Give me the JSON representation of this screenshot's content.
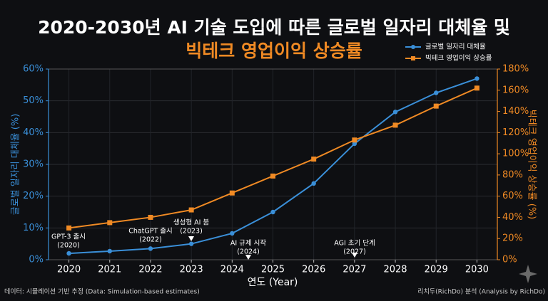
{
  "chart_data": {
    "type": "line",
    "title": [
      "2020-2030년 AI 기술 도입에 따른 글로벌 일자리 대체율 및",
      "빅테크 영업이익 상승률"
    ],
    "x_label": "연도 (Year)",
    "y_label": "글로벌 일자리 대체율 (%)",
    "y2_label": "빅테크 영업이익 상승률 (%)",
    "x": [
      2020,
      2021,
      2022,
      2023,
      2024,
      2025,
      2026,
      2027,
      2028,
      2029,
      2030
    ],
    "xlim": [
      2019.5,
      2030.5
    ],
    "xticks": [
      2020,
      2021,
      2022,
      2023,
      2024,
      2025,
      2026,
      2027,
      2028,
      2029,
      2030
    ],
    "ylim": [
      0,
      60
    ],
    "yticks": [
      {
        "value": 0,
        "label": "0%"
      },
      {
        "value": 10,
        "label": "10%"
      },
      {
        "value": 20,
        "label": "20%"
      },
      {
        "value": 30,
        "label": "30%"
      },
      {
        "value": 40,
        "label": "40%"
      },
      {
        "value": 50,
        "label": "50%"
      },
      {
        "value": 60,
        "label": "60%"
      }
    ],
    "y2lim": [
      0,
      180
    ],
    "y2ticks": [
      {
        "value": 0,
        "label": "0%"
      },
      {
        "value": 20,
        "label": "20%"
      },
      {
        "value": 40,
        "label": "40%"
      },
      {
        "value": 60,
        "label": "60%"
      },
      {
        "value": 80,
        "label": "80%"
      },
      {
        "value": 100,
        "label": "100%"
      },
      {
        "value": 120,
        "label": "120%"
      },
      {
        "value": 140,
        "label": "140%"
      },
      {
        "value": 160,
        "label": "160%"
      },
      {
        "value": 180,
        "label": "180%"
      }
    ],
    "grid": true,
    "legend": "upper right",
    "series": [
      {
        "name": "글로벌 일자리 대체율",
        "color": "#3a8fd8",
        "values": [
          2,
          2.7,
          3.5,
          5,
          8.3,
          15,
          24,
          36.5,
          46.5,
          52.5,
          57
        ]
      },
      {
        "name": "빅테크 영업이익 상승률",
        "color": "#f08a24",
        "axis": "y2",
        "values": [
          30,
          35,
          40,
          47,
          63,
          79,
          95,
          113,
          127,
          145,
          162
        ]
      }
    ],
    "annotations": [
      {
        "text": "GPT-3 출시",
        "sub": "(2020)"
      },
      {
        "text": "ChatGPT 출시",
        "sub": "(2022)"
      },
      {
        "text": "생성형 AI 붐",
        "sub": "(2023)"
      },
      {
        "text": "AI 규제 시작",
        "sub": "(2024)"
      },
      {
        "text": "AGI 초기 단계",
        "sub": "(2027)"
      }
    ],
    "footer_left": "데이터: 시뮬레이션 기반 추정 (Data: Simulation-based estimates)",
    "footer_right": "리치두(RichDo) 분석 (Analysis by RichDo)"
  }
}
